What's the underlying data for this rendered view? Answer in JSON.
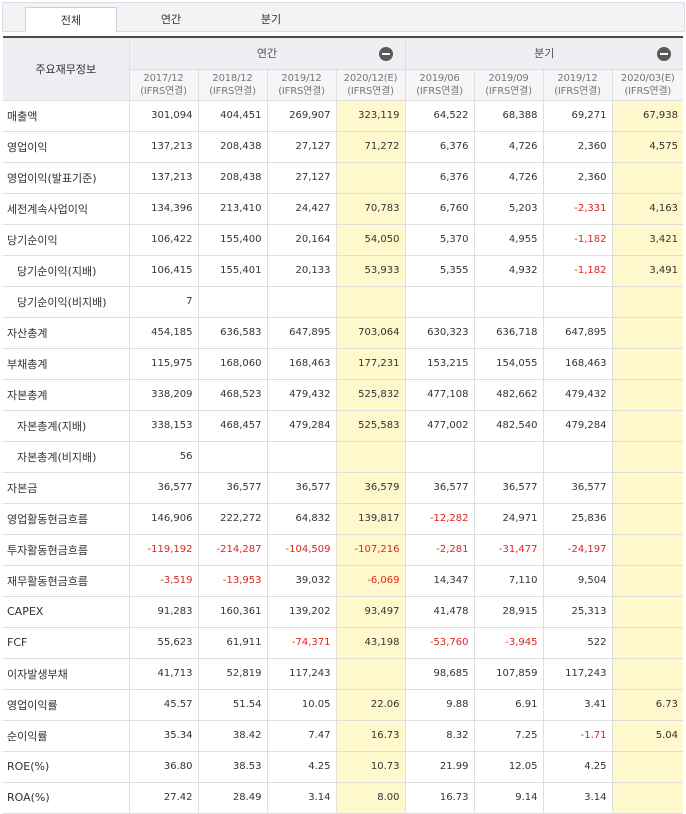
{
  "tabs": [
    {
      "label": "전체",
      "active": true
    },
    {
      "label": "연간",
      "active": false
    },
    {
      "label": "분기",
      "active": false
    }
  ],
  "table": {
    "corner_label": "주요재무정보",
    "groups": {
      "annual": "연간",
      "quarterly": "분기"
    },
    "periods": [
      {
        "date": "2017/12",
        "basis": "(IFRS연결)"
      },
      {
        "date": "2018/12",
        "basis": "(IFRS연결)"
      },
      {
        "date": "2019/12",
        "basis": "(IFRS연결)"
      },
      {
        "date": "2020/12(E)",
        "basis": "(IFRS연결)"
      },
      {
        "date": "2019/06",
        "basis": "(IFRS연결)"
      },
      {
        "date": "2019/09",
        "basis": "(IFRS연결)"
      },
      {
        "date": "2019/12",
        "basis": "(IFRS연결)"
      },
      {
        "date": "2020/03(E)",
        "basis": "(IFRS연결)"
      }
    ],
    "rows": [
      {
        "label": "매출액",
        "indent": false,
        "values": [
          "301,094",
          "404,451",
          "269,907",
          "323,119",
          "64,522",
          "68,388",
          "69,271",
          "67,938"
        ]
      },
      {
        "label": "영업이익",
        "indent": false,
        "values": [
          "137,213",
          "208,438",
          "27,127",
          "71,272",
          "6,376",
          "4,726",
          "2,360",
          "4,575"
        ]
      },
      {
        "label": "영업이익(발표기준)",
        "indent": false,
        "values": [
          "137,213",
          "208,438",
          "27,127",
          "",
          "6,376",
          "4,726",
          "2,360",
          ""
        ]
      },
      {
        "label": "세전계속사업이익",
        "indent": false,
        "values": [
          "134,396",
          "213,410",
          "24,427",
          "70,783",
          "6,760",
          "5,203",
          "-2,331",
          "4,163"
        ]
      },
      {
        "label": "당기순이익",
        "indent": false,
        "values": [
          "106,422",
          "155,400",
          "20,164",
          "54,050",
          "5,370",
          "4,955",
          "-1,182",
          "3,421"
        ]
      },
      {
        "label": "당기순이익(지배)",
        "indent": true,
        "values": [
          "106,415",
          "155,401",
          "20,133",
          "53,933",
          "5,355",
          "4,932",
          "-1,182",
          "3,491"
        ]
      },
      {
        "label": "당기순이익(비지배)",
        "indent": true,
        "values": [
          "7",
          "",
          "",
          "",
          "",
          "",
          "",
          ""
        ]
      },
      {
        "label": "자산총계",
        "indent": false,
        "values": [
          "454,185",
          "636,583",
          "647,895",
          "703,064",
          "630,323",
          "636,718",
          "647,895",
          ""
        ]
      },
      {
        "label": "부채총계",
        "indent": false,
        "values": [
          "115,975",
          "168,060",
          "168,463",
          "177,231",
          "153,215",
          "154,055",
          "168,463",
          ""
        ]
      },
      {
        "label": "자본총계",
        "indent": false,
        "values": [
          "338,209",
          "468,523",
          "479,432",
          "525,832",
          "477,108",
          "482,662",
          "479,432",
          ""
        ]
      },
      {
        "label": "자본총계(지배)",
        "indent": true,
        "values": [
          "338,153",
          "468,457",
          "479,284",
          "525,583",
          "477,002",
          "482,540",
          "479,284",
          ""
        ]
      },
      {
        "label": "자본총계(비지배)",
        "indent": true,
        "values": [
          "56",
          "",
          "",
          "",
          "",
          "",
          "",
          ""
        ]
      },
      {
        "label": "자본금",
        "indent": false,
        "values": [
          "36,577",
          "36,577",
          "36,577",
          "36,579",
          "36,577",
          "36,577",
          "36,577",
          ""
        ]
      },
      {
        "label": "영업활동현금흐름",
        "indent": false,
        "values": [
          "146,906",
          "222,272",
          "64,832",
          "139,817",
          "-12,282",
          "24,971",
          "25,836",
          ""
        ]
      },
      {
        "label": "투자활동현금흐름",
        "indent": false,
        "values": [
          "-119,192",
          "-214,287",
          "-104,509",
          "-107,216",
          "-2,281",
          "-31,477",
          "-24,197",
          ""
        ]
      },
      {
        "label": "재무활동현금흐름",
        "indent": false,
        "values": [
          "-3,519",
          "-13,953",
          "39,032",
          "-6,069",
          "14,347",
          "7,110",
          "9,504",
          ""
        ]
      },
      {
        "label": "CAPEX",
        "indent": false,
        "values": [
          "91,283",
          "160,361",
          "139,202",
          "93,497",
          "41,478",
          "28,915",
          "25,313",
          ""
        ]
      },
      {
        "label": "FCF",
        "indent": false,
        "values": [
          "55,623",
          "61,911",
          "-74,371",
          "43,198",
          "-53,760",
          "-3,945",
          "522",
          ""
        ]
      },
      {
        "label": "이자발생부채",
        "indent": false,
        "values": [
          "41,713",
          "52,819",
          "117,243",
          "",
          "98,685",
          "107,859",
          "117,243",
          ""
        ]
      },
      {
        "label": "영업이익률",
        "indent": false,
        "values": [
          "45.57",
          "51.54",
          "10.05",
          "22.06",
          "9.88",
          "6.91",
          "3.41",
          "6.73"
        ]
      },
      {
        "label": "순이익률",
        "indent": false,
        "values": [
          "35.34",
          "38.42",
          "7.47",
          "16.73",
          "8.32",
          "7.25",
          "-1.71",
          "5.04"
        ]
      },
      {
        "label": "ROE(%)",
        "indent": false,
        "values": [
          "36.80",
          "38.53",
          "4.25",
          "10.73",
          "21.99",
          "12.05",
          "4.25",
          ""
        ]
      },
      {
        "label": "ROA(%)",
        "indent": false,
        "values": [
          "27.42",
          "28.49",
          "3.14",
          "8.00",
          "16.73",
          "9.14",
          "3.14",
          ""
        ]
      }
    ],
    "estimate_columns": [
      3,
      7
    ]
  },
  "colors": {
    "estimate_bg": "#fff8cc",
    "negative": "#e0241b",
    "header_bg": "#eeeef3"
  }
}
